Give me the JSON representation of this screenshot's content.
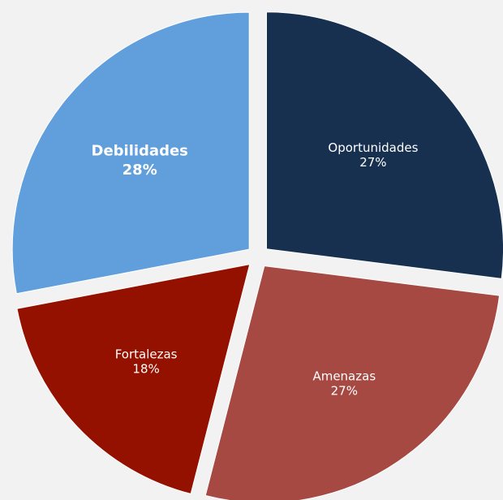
{
  "chart_data": {
    "type": "pie",
    "title": "",
    "legend": "none",
    "slices": [
      {
        "name": "Oportunidades",
        "value": 27,
        "label": "27%",
        "color": "#17304f",
        "emphasis": false
      },
      {
        "name": "Amenazas",
        "value": 27,
        "label": "27%",
        "color": "#a64942",
        "emphasis": false
      },
      {
        "name": "Fortalezas",
        "value": 18,
        "label": "18%",
        "color": "#941100",
        "emphasis": false
      },
      {
        "name": "Debilidades",
        "value": 28,
        "label": "28%",
        "color": "#609fdb",
        "emphasis": true
      }
    ]
  }
}
